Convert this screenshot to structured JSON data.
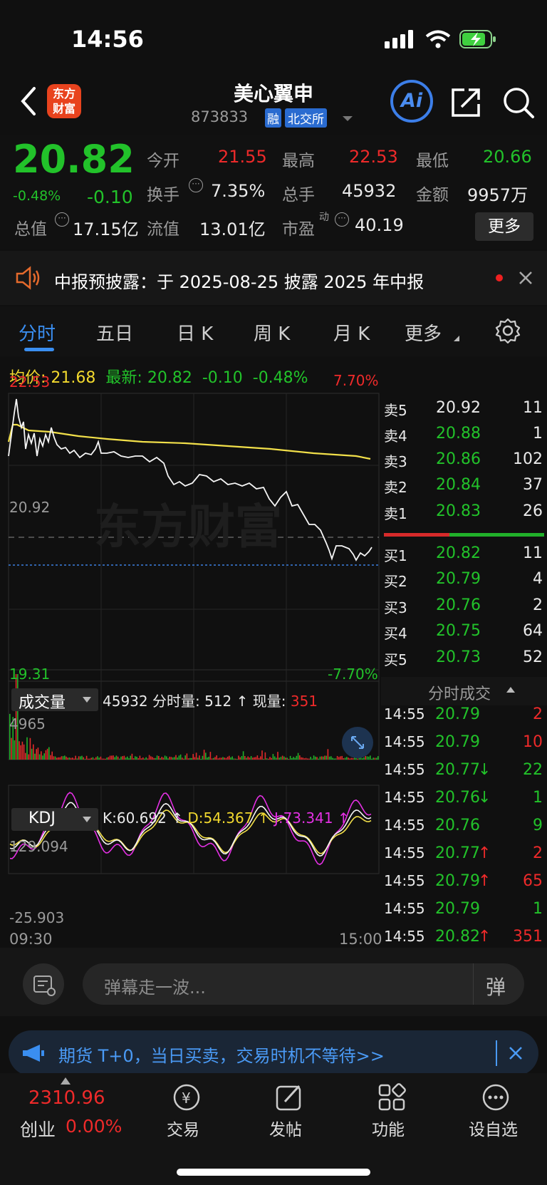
{
  "status_bar": {
    "time": "14:56"
  },
  "header": {
    "title": "美心翼申",
    "code": "873833",
    "badge_margin": "融",
    "badge_exchange": "北交所",
    "logo_line1": "东方",
    "logo_line2": "财富",
    "ai": "Ai"
  },
  "quote": {
    "price": "20.82",
    "pct": "-0.48%",
    "chg": "-0.10",
    "open_label": "今开",
    "open": "21.55",
    "high_label": "最高",
    "high": "22.53",
    "low_label": "最低",
    "low": "20.66",
    "turnover_label": "换手",
    "turnover": "7.35%",
    "vol_label": "总手",
    "vol": "45932",
    "amount_label": "金额",
    "amount": "9957万",
    "mcap_label": "总值",
    "mcap": "17.15亿",
    "float_label": "流值",
    "float": "13.01亿",
    "pe_label": "市盈",
    "pe_sup": "动",
    "pe": "40.19",
    "more": "更多"
  },
  "notice": {
    "text": "中报预披露：于 2025-08-25 披露 2025 年中报"
  },
  "tabs": [
    "分时",
    "五日",
    "日 K",
    "周 K",
    "月 K",
    "更多"
  ],
  "legend": {
    "avg_label": "均价:",
    "avg": "21.68",
    "latest_label": "最新:",
    "latest": "20.82",
    "chg": "-0.10",
    "pct": "-0.48%"
  },
  "chart_axes": {
    "top": "22.53",
    "top_pct": "7.70%",
    "mid": "20.92",
    "bottom": "19.31",
    "bottom_pct": "-7.70%",
    "start": "09:30",
    "end": "15:00",
    "watermark": "东方财富"
  },
  "volume": {
    "label": "成交量",
    "total": "45932",
    "period_label": "分时量:",
    "period": "512",
    "now_label": "现量:",
    "now": "351",
    "max": "4965"
  },
  "kdj": {
    "label": "KDJ",
    "k": "K:60.692",
    "d": "D:54.367",
    "j": "J:73.341",
    "top": "129.094",
    "bottom": "-25.903"
  },
  "order_book": {
    "asks": [
      {
        "label": "卖5",
        "price": "20.92",
        "qty": "11"
      },
      {
        "label": "卖4",
        "price": "20.88",
        "qty": "1"
      },
      {
        "label": "卖3",
        "price": "20.86",
        "qty": "102"
      },
      {
        "label": "卖2",
        "price": "20.84",
        "qty": "37"
      },
      {
        "label": "卖1",
        "price": "20.83",
        "qty": "26"
      }
    ],
    "bids": [
      {
        "label": "买1",
        "price": "20.82",
        "qty": "11"
      },
      {
        "label": "买2",
        "price": "20.79",
        "qty": "4"
      },
      {
        "label": "买3",
        "price": "20.76",
        "qty": "2"
      },
      {
        "label": "买4",
        "price": "20.75",
        "qty": "64"
      },
      {
        "label": "买5",
        "price": "20.73",
        "qty": "52"
      }
    ]
  },
  "ticks_title": "分时成交",
  "ticks": [
    {
      "time": "14:55",
      "price": "20.79",
      "dir": "",
      "qty": "2",
      "color": "r"
    },
    {
      "time": "14:55",
      "price": "20.79",
      "dir": "",
      "qty": "10",
      "color": "r"
    },
    {
      "time": "14:55",
      "price": "20.77",
      "dir": "↓",
      "qty": "22",
      "color": "g"
    },
    {
      "time": "14:55",
      "price": "20.76",
      "dir": "↓",
      "qty": "1",
      "color": "g"
    },
    {
      "time": "14:55",
      "price": "20.76",
      "dir": "",
      "qty": "9",
      "color": "g"
    },
    {
      "time": "14:55",
      "price": "20.77",
      "dir": "↑",
      "qty": "2",
      "color": "r"
    },
    {
      "time": "14:55",
      "price": "20.79",
      "dir": "↑",
      "qty": "65",
      "color": "r"
    },
    {
      "time": "14:55",
      "price": "20.79",
      "dir": "",
      "qty": "1",
      "color": "g"
    },
    {
      "time": "14:55",
      "price": "20.82",
      "dir": "↑",
      "qty": "351",
      "color": "r"
    }
  ],
  "danmu": {
    "placeholder": "弹幕走一波...",
    "send": "弹"
  },
  "ad": {
    "text": "期货 T+0，当日买卖，交易时机不等待>>"
  },
  "nav": {
    "index_value": "2310.96",
    "index_name": "创业",
    "index_pct": "0.00%",
    "items": [
      "交易",
      "发帖",
      "功能",
      "设自选"
    ]
  }
}
